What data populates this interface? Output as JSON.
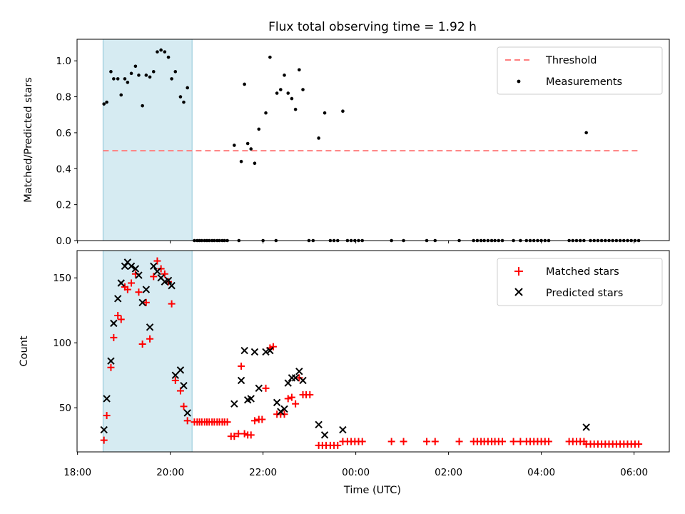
{
  "chart_data": [
    {
      "type": "scatter",
      "title": "Flux total observing time = 1.92 h",
      "xlabel": "",
      "ylabel": "Matched/Predicted stars",
      "ylim": [
        0,
        1.12
      ],
      "yticks": [
        0.0,
        0.2,
        0.4,
        0.6,
        0.8,
        1.0
      ],
      "ytick_labels": [
        "0.0",
        "0.2",
        "0.4",
        "0.6",
        "0.8",
        "1.0"
      ],
      "xlim_hours": [
        17.99,
        30.76
      ],
      "xticks_hours": [
        18,
        20,
        22,
        24,
        26,
        28,
        30
      ],
      "highlight_span_hours": [
        18.55,
        20.47
      ],
      "highlight_color": "#add8e6",
      "legend_position": "upper right",
      "threshold": {
        "name": "Threshold",
        "value": 0.5,
        "x_range_hours": [
          18.55,
          30.15
        ],
        "color": "#ff7f7f",
        "style": "dashed"
      },
      "measurements": {
        "name": "Measurements",
        "color": "#000000",
        "points": [
          [
            18.57,
            0.76
          ],
          [
            18.63,
            0.77
          ],
          [
            18.72,
            0.94
          ],
          [
            18.78,
            0.9
          ],
          [
            18.87,
            0.9
          ],
          [
            18.94,
            0.81
          ],
          [
            19.02,
            0.9
          ],
          [
            19.08,
            0.88
          ],
          [
            19.16,
            0.93
          ],
          [
            19.25,
            0.97
          ],
          [
            19.32,
            0.92
          ],
          [
            19.4,
            0.75
          ],
          [
            19.48,
            0.92
          ],
          [
            19.56,
            0.91
          ],
          [
            19.64,
            0.94
          ],
          [
            19.72,
            1.05
          ],
          [
            19.8,
            1.06
          ],
          [
            19.88,
            1.05
          ],
          [
            19.96,
            1.02
          ],
          [
            20.03,
            0.9
          ],
          [
            20.11,
            0.94
          ],
          [
            20.22,
            0.8
          ],
          [
            20.29,
            0.77
          ],
          [
            20.37,
            0.85
          ],
          [
            21.38,
            0.53
          ],
          [
            21.53,
            0.44
          ],
          [
            21.6,
            0.87
          ],
          [
            21.67,
            0.54
          ],
          [
            21.74,
            0.51
          ],
          [
            21.82,
            0.43
          ],
          [
            21.91,
            0.62
          ],
          [
            22.06,
            0.71
          ],
          [
            22.15,
            1.02
          ],
          [
            22.3,
            0.82
          ],
          [
            22.38,
            0.84
          ],
          [
            22.46,
            0.92
          ],
          [
            22.54,
            0.82
          ],
          [
            22.62,
            0.79
          ],
          [
            22.7,
            0.73
          ],
          [
            22.78,
            0.95
          ],
          [
            22.86,
            0.84
          ],
          [
            23.2,
            0.57
          ],
          [
            23.33,
            0.71
          ],
          [
            23.72,
            0.72
          ],
          [
            28.97,
            0.6
          ],
          [
            20.52,
            0.0
          ],
          [
            20.58,
            0.0
          ],
          [
            20.63,
            0.0
          ],
          [
            20.68,
            0.0
          ],
          [
            20.74,
            0.0
          ],
          [
            20.79,
            0.0
          ],
          [
            20.84,
            0.0
          ],
          [
            20.9,
            0.0
          ],
          [
            20.95,
            0.0
          ],
          [
            21.01,
            0.0
          ],
          [
            21.06,
            0.0
          ],
          [
            21.12,
            0.0
          ],
          [
            21.17,
            0.0
          ],
          [
            21.23,
            0.0
          ],
          [
            21.48,
            0.0
          ],
          [
            22.0,
            0.0
          ],
          [
            22.28,
            0.0
          ],
          [
            22.99,
            0.0
          ],
          [
            23.08,
            0.0
          ],
          [
            23.45,
            0.0
          ],
          [
            23.53,
            0.0
          ],
          [
            23.61,
            0.0
          ],
          [
            23.82,
            0.0
          ],
          [
            23.9,
            0.0
          ],
          [
            23.98,
            0.0
          ],
          [
            24.06,
            0.0
          ],
          [
            24.14,
            0.0
          ],
          [
            24.77,
            0.0
          ],
          [
            25.03,
            0.0
          ],
          [
            25.53,
            0.0
          ],
          [
            25.71,
            0.0
          ],
          [
            26.23,
            0.0
          ],
          [
            26.54,
            0.0
          ],
          [
            26.62,
            0.0
          ],
          [
            26.7,
            0.0
          ],
          [
            26.77,
            0.0
          ],
          [
            26.85,
            0.0
          ],
          [
            26.93,
            0.0
          ],
          [
            27.0,
            0.0
          ],
          [
            27.08,
            0.0
          ],
          [
            27.16,
            0.0
          ],
          [
            27.4,
            0.0
          ],
          [
            27.55,
            0.0
          ],
          [
            27.68,
            0.0
          ],
          [
            27.76,
            0.0
          ],
          [
            27.84,
            0.0
          ],
          [
            27.92,
            0.0
          ],
          [
            28.0,
            0.0
          ],
          [
            28.08,
            0.0
          ],
          [
            28.16,
            0.0
          ],
          [
            28.6,
            0.0
          ],
          [
            28.68,
            0.0
          ],
          [
            28.76,
            0.0
          ],
          [
            28.84,
            0.0
          ],
          [
            28.92,
            0.0
          ],
          [
            29.06,
            0.0
          ],
          [
            29.14,
            0.0
          ],
          [
            29.22,
            0.0
          ],
          [
            29.3,
            0.0
          ],
          [
            29.38,
            0.0
          ],
          [
            29.46,
            0.0
          ],
          [
            29.54,
            0.0
          ],
          [
            29.62,
            0.0
          ],
          [
            29.7,
            0.0
          ],
          [
            29.78,
            0.0
          ],
          [
            29.86,
            0.0
          ],
          [
            29.94,
            0.0
          ],
          [
            30.02,
            0.0
          ],
          [
            30.1,
            0.0
          ]
        ]
      }
    },
    {
      "type": "scatter",
      "title": "",
      "xlabel": "Time (UTC)",
      "ylabel": "Count",
      "ylim": [
        16,
        171
      ],
      "yticks": [
        50,
        100,
        150
      ],
      "ytick_labels": [
        "50",
        "100",
        "150"
      ],
      "xlim_hours": [
        17.99,
        30.76
      ],
      "xticks_hours": [
        18,
        20,
        22,
        24,
        26,
        28,
        30
      ],
      "xtick_labels": [
        "18:00",
        "20:00",
        "22:00",
        "00:00",
        "02:00",
        "04:00",
        "06:00"
      ],
      "highlight_span_hours": [
        18.55,
        20.47
      ],
      "highlight_color": "#add8e6",
      "legend_position": "upper right",
      "series": [
        {
          "name": "Matched stars",
          "marker": "plus",
          "color": "#ff0000",
          "points": [
            [
              18.57,
              25
            ],
            [
              18.63,
              44
            ],
            [
              18.72,
              81
            ],
            [
              18.78,
              104
            ],
            [
              18.87,
              121
            ],
            [
              18.94,
              118
            ],
            [
              19.02,
              143
            ],
            [
              19.08,
              141
            ],
            [
              19.16,
              146
            ],
            [
              19.25,
              153
            ],
            [
              19.32,
              139
            ],
            [
              19.4,
              99
            ],
            [
              19.48,
              131
            ],
            [
              19.56,
              103
            ],
            [
              19.64,
              151
            ],
            [
              19.72,
              163
            ],
            [
              19.8,
              157
            ],
            [
              19.88,
              153
            ],
            [
              19.96,
              147
            ],
            [
              20.03,
              130
            ],
            [
              20.11,
              71
            ],
            [
              20.22,
              63
            ],
            [
              20.29,
              51
            ],
            [
              20.37,
              40
            ],
            [
              20.52,
              39
            ],
            [
              20.58,
              39
            ],
            [
              20.63,
              39
            ],
            [
              20.68,
              39
            ],
            [
              20.74,
              39
            ],
            [
              20.79,
              39
            ],
            [
              20.84,
              39
            ],
            [
              20.9,
              39
            ],
            [
              20.95,
              39
            ],
            [
              21.01,
              39
            ],
            [
              21.06,
              39
            ],
            [
              21.12,
              39
            ],
            [
              21.17,
              39
            ],
            [
              21.23,
              39
            ],
            [
              21.31,
              28
            ],
            [
              21.38,
              28
            ],
            [
              21.47,
              30
            ],
            [
              21.53,
              82
            ],
            [
              21.6,
              30
            ],
            [
              21.67,
              29
            ],
            [
              21.74,
              29
            ],
            [
              21.82,
              40
            ],
            [
              21.91,
              41
            ],
            [
              21.98,
              41
            ],
            [
              22.06,
              65
            ],
            [
              22.15,
              96
            ],
            [
              22.22,
              97
            ],
            [
              22.3,
              45
            ],
            [
              22.38,
              45
            ],
            [
              22.46,
              45
            ],
            [
              22.54,
              57
            ],
            [
              22.62,
              58
            ],
            [
              22.7,
              53
            ],
            [
              22.78,
              73
            ],
            [
              22.86,
              60
            ],
            [
              22.93,
              60
            ],
            [
              23.01,
              60
            ],
            [
              23.2,
              21
            ],
            [
              23.28,
              21
            ],
            [
              23.36,
              21
            ],
            [
              23.45,
              21
            ],
            [
              23.53,
              21
            ],
            [
              23.61,
              21
            ],
            [
              23.72,
              24
            ],
            [
              23.82,
              24
            ],
            [
              23.9,
              24
            ],
            [
              23.98,
              24
            ],
            [
              24.06,
              24
            ],
            [
              24.14,
              24
            ],
            [
              24.77,
              24
            ],
            [
              25.03,
              24
            ],
            [
              25.53,
              24
            ],
            [
              25.71,
              24
            ],
            [
              26.23,
              24
            ],
            [
              26.54,
              24
            ],
            [
              26.62,
              24
            ],
            [
              26.7,
              24
            ],
            [
              26.77,
              24
            ],
            [
              26.85,
              24
            ],
            [
              26.93,
              24
            ],
            [
              27.0,
              24
            ],
            [
              27.08,
              24
            ],
            [
              27.16,
              24
            ],
            [
              27.4,
              24
            ],
            [
              27.55,
              24
            ],
            [
              27.68,
              24
            ],
            [
              27.76,
              24
            ],
            [
              27.84,
              24
            ],
            [
              27.92,
              24
            ],
            [
              28.0,
              24
            ],
            [
              28.08,
              24
            ],
            [
              28.16,
              24
            ],
            [
              28.6,
              24
            ],
            [
              28.68,
              24
            ],
            [
              28.76,
              24
            ],
            [
              28.84,
              24
            ],
            [
              28.92,
              24
            ],
            [
              28.97,
              22
            ],
            [
              29.06,
              22
            ],
            [
              29.14,
              22
            ],
            [
              29.22,
              22
            ],
            [
              29.3,
              22
            ],
            [
              29.38,
              22
            ],
            [
              29.46,
              22
            ],
            [
              29.54,
              22
            ],
            [
              29.62,
              22
            ],
            [
              29.7,
              22
            ],
            [
              29.78,
              22
            ],
            [
              29.86,
              22
            ],
            [
              29.94,
              22
            ],
            [
              30.02,
              22
            ],
            [
              30.1,
              22
            ]
          ]
        },
        {
          "name": "Predicted stars",
          "marker": "x",
          "color": "#000000",
          "points": [
            [
              18.57,
              33
            ],
            [
              18.63,
              57
            ],
            [
              18.72,
              86
            ],
            [
              18.78,
              115
            ],
            [
              18.87,
              134
            ],
            [
              18.94,
              146
            ],
            [
              19.02,
              159
            ],
            [
              19.08,
              162
            ],
            [
              19.16,
              159
            ],
            [
              19.25,
              157
            ],
            [
              19.32,
              152
            ],
            [
              19.4,
              131
            ],
            [
              19.48,
              141
            ],
            [
              19.56,
              112
            ],
            [
              19.64,
              159
            ],
            [
              19.72,
              155
            ],
            [
              19.8,
              150
            ],
            [
              19.88,
              147
            ],
            [
              19.96,
              148
            ],
            [
              20.03,
              144
            ],
            [
              20.11,
              75
            ],
            [
              20.22,
              79
            ],
            [
              20.29,
              67
            ],
            [
              20.37,
              46
            ],
            [
              21.38,
              53
            ],
            [
              21.53,
              71
            ],
            [
              21.6,
              94
            ],
            [
              21.67,
              56
            ],
            [
              21.74,
              57
            ],
            [
              21.82,
              93
            ],
            [
              21.91,
              65
            ],
            [
              22.06,
              93
            ],
            [
              22.15,
              94
            ],
            [
              22.3,
              54
            ],
            [
              22.38,
              47
            ],
            [
              22.46,
              49
            ],
            [
              22.54,
              69
            ],
            [
              22.62,
              73
            ],
            [
              22.7,
              73
            ],
            [
              22.78,
              78
            ],
            [
              22.86,
              71
            ],
            [
              23.2,
              37
            ],
            [
              23.33,
              29
            ],
            [
              23.72,
              33
            ],
            [
              28.97,
              35
            ]
          ]
        }
      ]
    }
  ]
}
